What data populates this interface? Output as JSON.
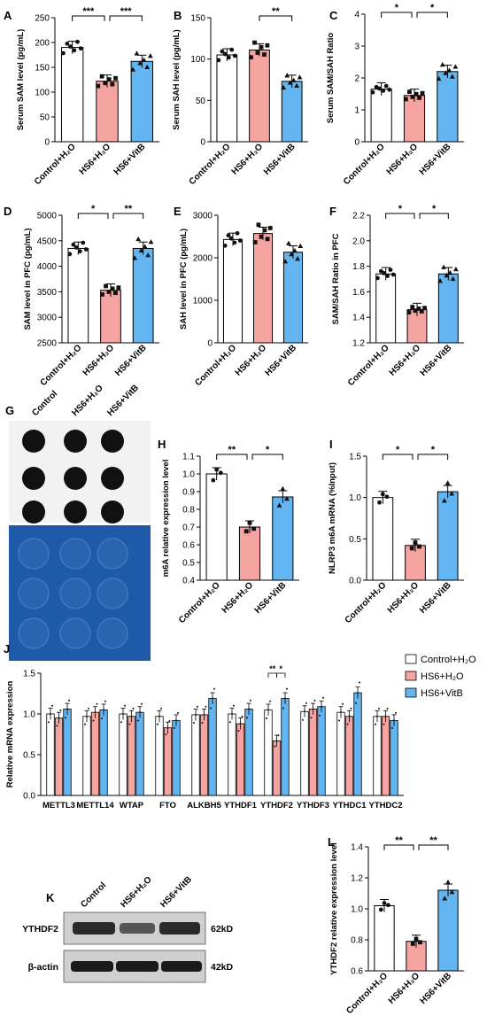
{
  "colors": {
    "control": "#ffffff",
    "hs6h2o": "#f6a4a1",
    "hs6vitb": "#62b5f0",
    "blot_bg": "#1e5aa8",
    "dot": "#111111"
  },
  "categories": [
    "Control+H₂O",
    "HS6+H₂O",
    "HS6+VitB"
  ],
  "panels": [
    {
      "letter": "A",
      "ylabel": "Serum SAM level (pg/mL)",
      "ylim": [
        0,
        250
      ],
      "yticks": [
        "0",
        "50",
        "100",
        "150",
        "200",
        "250"
      ],
      "values": [
        190,
        122,
        162
      ],
      "sig": [
        {
          "text": "***",
          "from": 0,
          "to": 1
        },
        {
          "text": "***",
          "from": 1,
          "to": 2
        }
      ]
    },
    {
      "letter": "B",
      "ylabel": "Serum SAH level (pg/mL)",
      "ylim": [
        0,
        150
      ],
      "yticks": [
        "0",
        "50",
        "100",
        "150"
      ],
      "values": [
        105,
        111,
        73
      ],
      "sig": [
        {
          "text": "**",
          "from": 1,
          "to": 2
        }
      ]
    },
    {
      "letter": "C",
      "ylabel": "Serum SAM/SAH Ratio",
      "ylim": [
        0,
        4
      ],
      "yticks": [
        "0",
        "1",
        "2",
        "3",
        "4"
      ],
      "values": [
        1.65,
        1.45,
        2.2
      ],
      "sig": [
        {
          "text": "*",
          "from": 0,
          "to": 1
        },
        {
          "text": "*",
          "from": 1,
          "to": 2
        }
      ]
    },
    {
      "letter": "D",
      "ylabel": "SAM level in PFC (pg/mL)",
      "ylim": [
        2500,
        5000
      ],
      "yticks": [
        "2500",
        "3000",
        "3500",
        "4000",
        "4500",
        "5000"
      ],
      "values": [
        4350,
        3530,
        4350
      ],
      "sig": [
        {
          "text": "*",
          "from": 0,
          "to": 1
        },
        {
          "text": "**",
          "from": 1,
          "to": 2
        }
      ]
    },
    {
      "letter": "E",
      "ylabel": "SAH level in PFC (pg/mL)",
      "ylim": [
        0,
        3000
      ],
      "yticks": [
        "0",
        "1000",
        "2000",
        "3000"
      ],
      "values": [
        2430,
        2570,
        2130
      ],
      "sig": []
    },
    {
      "letter": "F",
      "ylabel": "SAM/SAH Ratio in PFC",
      "ylim": [
        1.2,
        2.2
      ],
      "yticks": [
        "1.2",
        "1.4",
        "1.6",
        "1.8",
        "2.0",
        "2.2"
      ],
      "values": [
        1.74,
        1.46,
        1.74
      ],
      "sig": [
        {
          "text": "*",
          "from": 0,
          "to": 1
        },
        {
          "text": "*",
          "from": 1,
          "to": 2
        }
      ]
    },
    {
      "letter": "H",
      "ylabel": "m6A relative expression level",
      "ylim": [
        0.4,
        1.1
      ],
      "yticks": [
        "0.4",
        "0.5",
        "0.6",
        "0.7",
        "0.8",
        "0.9",
        "1.0",
        "1.1"
      ],
      "values": [
        1.0,
        0.7,
        0.87
      ],
      "sig": [
        {
          "text": "**",
          "from": 0,
          "to": 1
        },
        {
          "text": "*",
          "from": 1,
          "to": 2
        }
      ]
    },
    {
      "letter": "I",
      "ylabel": "NLRP3 m6A mRNA (%Input)",
      "ylim": [
        0,
        1.5
      ],
      "yticks": [
        "0.0",
        "0.5",
        "1.0",
        "1.5"
      ],
      "values": [
        1.0,
        0.42,
        1.07
      ],
      "sig": [
        {
          "text": "*",
          "from": 0,
          "to": 1
        },
        {
          "text": "*",
          "from": 1,
          "to": 2
        }
      ]
    },
    {
      "letter": "L",
      "ylabel": "YTHDF2 relative expression level",
      "ylim": [
        0.6,
        1.4
      ],
      "yticks": [
        "0.6",
        "0.8",
        "1.0",
        "1.2",
        "1.4"
      ],
      "values": [
        1.02,
        0.79,
        1.12
      ],
      "sig": [
        {
          "text": "**",
          "from": 0,
          "to": 1
        },
        {
          "text": "**",
          "from": 1,
          "to": 2
        }
      ]
    }
  ],
  "panel_g": {
    "letter": "G",
    "lanes": [
      "Control",
      "HS6+H₂O",
      "HS6+VitB"
    ]
  },
  "panel_j": {
    "letter": "J",
    "ylabel": "Relative mRNA expression",
    "ylim": [
      0,
      1.5
    ],
    "yticks": [
      "0.0",
      "0.5",
      "1.0",
      "1.5"
    ],
    "genes": [
      "METTL3",
      "METTL14",
      "WTAP",
      "FTO",
      "ALKBH5",
      "YTHDF1",
      "YTHDF2",
      "YTHDF3",
      "YTHDC1",
      "YTHDC2"
    ],
    "series": [
      {
        "name": "Control+H₂O",
        "values": [
          1.0,
          0.97,
          1.0,
          0.97,
          0.99,
          1.0,
          1.05,
          1.03,
          1.02,
          0.97
        ]
      },
      {
        "name": "HS6+H₂O",
        "values": [
          0.95,
          1.02,
          0.97,
          0.83,
          0.99,
          0.88,
          0.67,
          1.06,
          0.97,
          0.97
        ]
      },
      {
        "name": "HS6+VitB",
        "values": [
          1.06,
          1.05,
          1.02,
          0.92,
          1.19,
          1.06,
          1.19,
          1.09,
          1.26,
          0.92
        ]
      }
    ],
    "sig": [
      "**",
      "*"
    ]
  },
  "panel_k": {
    "letter": "K",
    "lanes": [
      "Control",
      "HS6+H₂O",
      "HS6+VitB"
    ],
    "rows": [
      {
        "protein": "YTHDF2",
        "size": "62kD"
      },
      {
        "protein": "β-actin",
        "size": "42kD"
      }
    ]
  }
}
